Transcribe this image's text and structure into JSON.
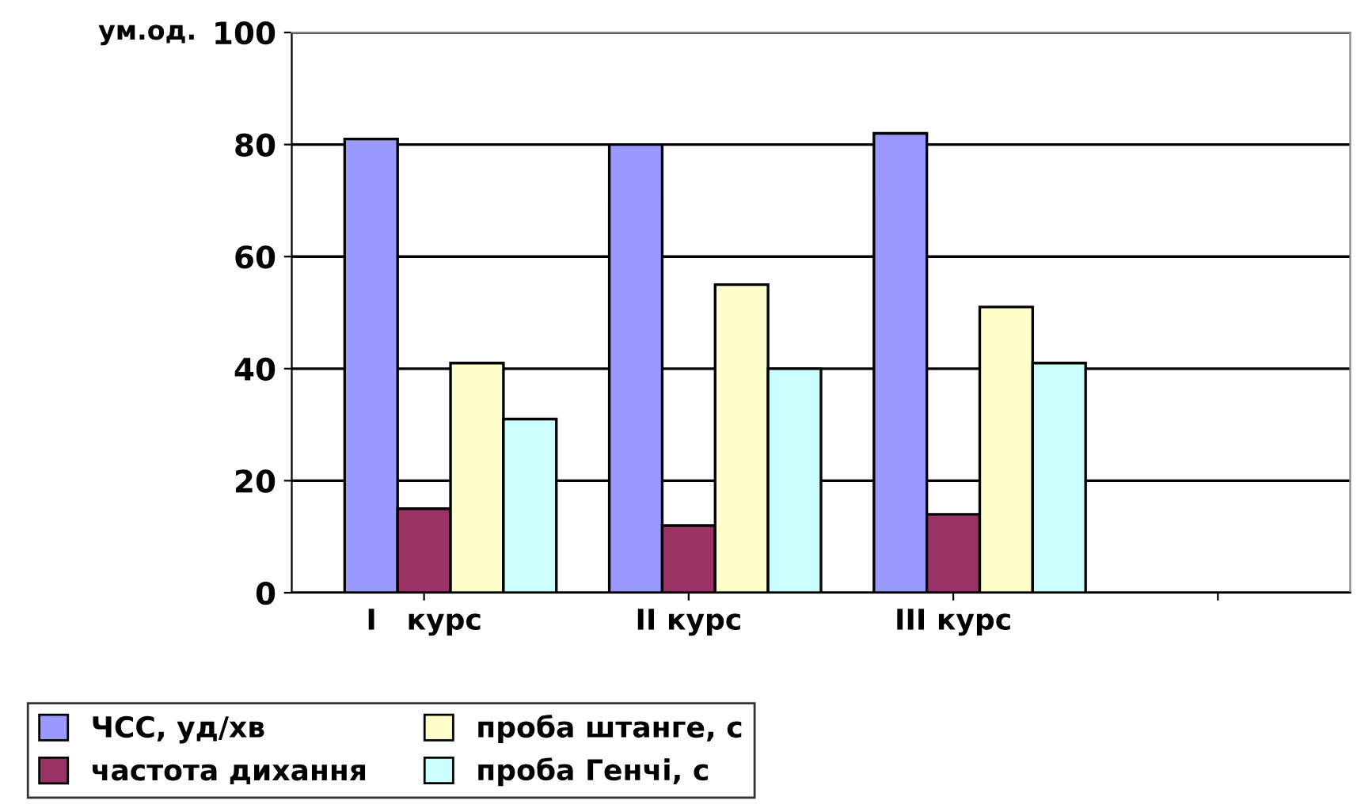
{
  "chart_data": {
    "type": "bar",
    "ylabel": "ум.од.",
    "categories": [
      "I   курс",
      "II курс",
      "III курс",
      null
    ],
    "series": [
      {
        "name": "ЧСС, уд/хв",
        "color": "#9999ff",
        "values": [
          81,
          80,
          82,
          null
        ]
      },
      {
        "name": "частота дихання",
        "color": "#993366",
        "values": [
          15,
          12,
          14,
          null
        ]
      },
      {
        "name": "проба штанге, с",
        "color": "#ffffcc",
        "values": [
          41,
          55,
          51,
          null
        ]
      },
      {
        "name": "проба Генчі, с",
        "color": "#ccffff",
        "values": [
          31,
          40,
          41,
          null
        ]
      }
    ],
    "ylim": [
      0,
      100
    ],
    "yticks": [
      0,
      20,
      40,
      60,
      80,
      100
    ],
    "grid": "y",
    "legend": "bottom left"
  }
}
